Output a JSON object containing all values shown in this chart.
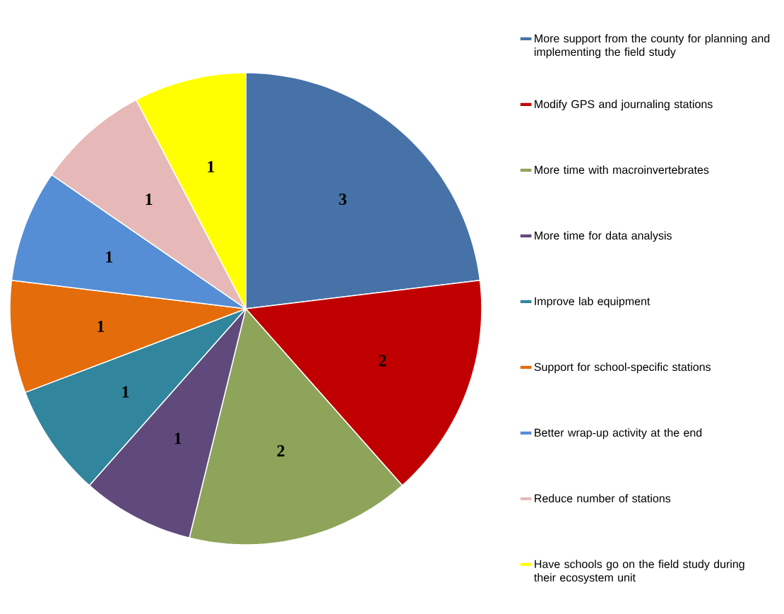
{
  "chart_data": {
    "type": "pie",
    "categories": [
      "More support from the county for planning and implementing the field study",
      "Modify GPS and journaling stations",
      "More time with macroinvertebrates",
      "More time for data analysis",
      "Improve lab equipment",
      "Support for school-specific stations",
      "Better wrap-up activity at the end",
      "Reduce number of stations",
      "Have schools go on the field study during their ecosystem unit"
    ],
    "values": [
      3,
      2,
      2,
      1,
      1,
      1,
      1,
      1,
      1
    ],
    "colors": [
      "#4672a8",
      "#c00000",
      "#8ea45a",
      "#604a7b",
      "#31859c",
      "#e46c0a",
      "#558ed5",
      "#e6b9b8",
      "#ffff00"
    ],
    "data_labels": true,
    "legend": "right"
  }
}
